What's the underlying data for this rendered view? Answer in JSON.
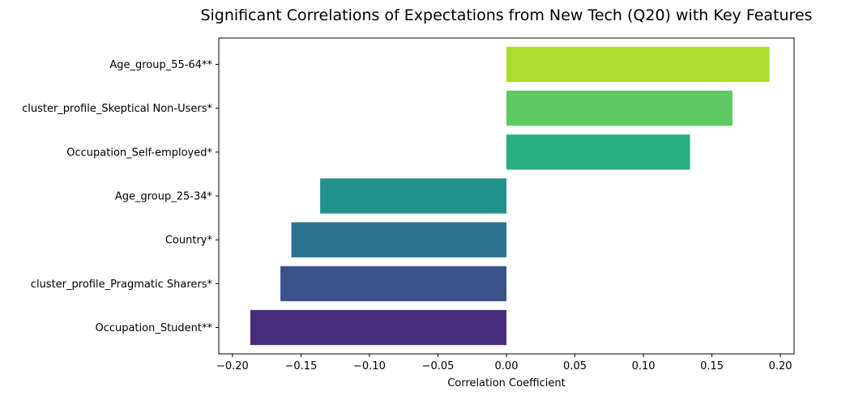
{
  "chart_data": {
    "type": "bar",
    "orientation": "horizontal",
    "title": "Significant Correlations of Expectations from New Tech (Q20) with Key Features",
    "xlabel": "Correlation Coefficient",
    "ylabel": "",
    "xlim": [
      -0.21,
      0.21
    ],
    "xticks": [
      -0.2,
      -0.15,
      -0.1,
      -0.05,
      0.0,
      0.05,
      0.1,
      0.15,
      0.2
    ],
    "xtick_labels": [
      "−0.20",
      "−0.15",
      "−0.10",
      "−0.05",
      "0.00",
      "0.05",
      "0.10",
      "0.15",
      "0.20"
    ],
    "grid": false,
    "legend": "none",
    "categories": [
      "Age_group_55-64**",
      "cluster_profile_Skeptical Non-Users*",
      "Occupation_Self-employed*",
      "Age_group_25-34*",
      "Country*",
      "cluster_profile_Pragmatic Sharers*",
      "Occupation_Student**"
    ],
    "values": [
      0.192,
      0.165,
      0.134,
      -0.136,
      -0.157,
      -0.165,
      -0.187
    ],
    "colors": [
      "#addc30",
      "#5ec962",
      "#28ae80",
      "#21918c",
      "#2c728e",
      "#3b528b",
      "#472d7b"
    ]
  }
}
